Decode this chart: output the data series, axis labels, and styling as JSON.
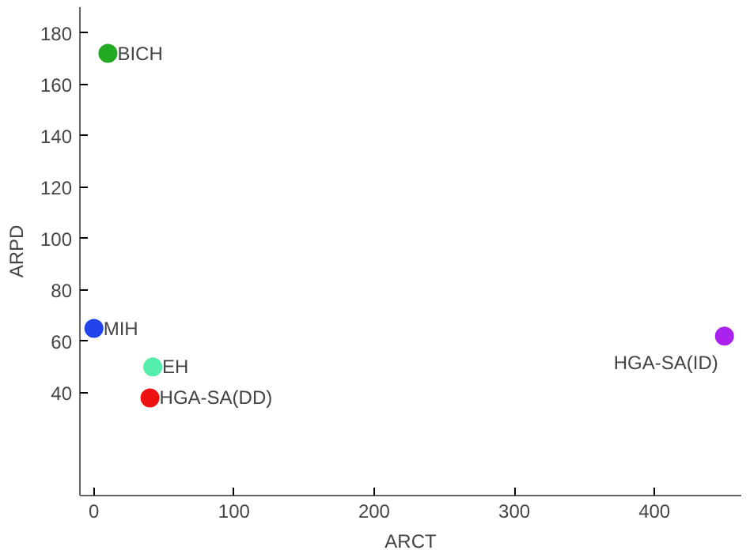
{
  "chart_data": {
    "type": "scatter",
    "xlabel": "ARCT",
    "ylabel": "ARPD",
    "x": [
      10,
      0,
      42,
      40,
      450
    ],
    "values": [
      172,
      65,
      50,
      38,
      62
    ],
    "colors": [
      "#22aa22",
      "#2244ee",
      "#55eeaa",
      "#ee1111",
      "#aa22ee"
    ],
    "annotations": [
      {
        "text": "BICH",
        "x": 10,
        "y": 172
      },
      {
        "text": "MIH",
        "x": 0,
        "y": 65
      },
      {
        "text": "EH",
        "x": 42,
        "y": 50
      },
      {
        "text": "HGA-SA(DD)",
        "x": 40,
        "y": 38
      },
      {
        "text": "HGA-SA(ID)",
        "x": 450,
        "y": 62
      }
    ],
    "xlim": [
      -10,
      462
    ],
    "ylim": [
      0,
      190
    ],
    "xticks": [
      0,
      100,
      200,
      300,
      400
    ],
    "yticks": [
      40,
      60,
      80,
      100,
      120,
      140,
      160,
      180
    ],
    "marker": "circle",
    "grid": false
  }
}
